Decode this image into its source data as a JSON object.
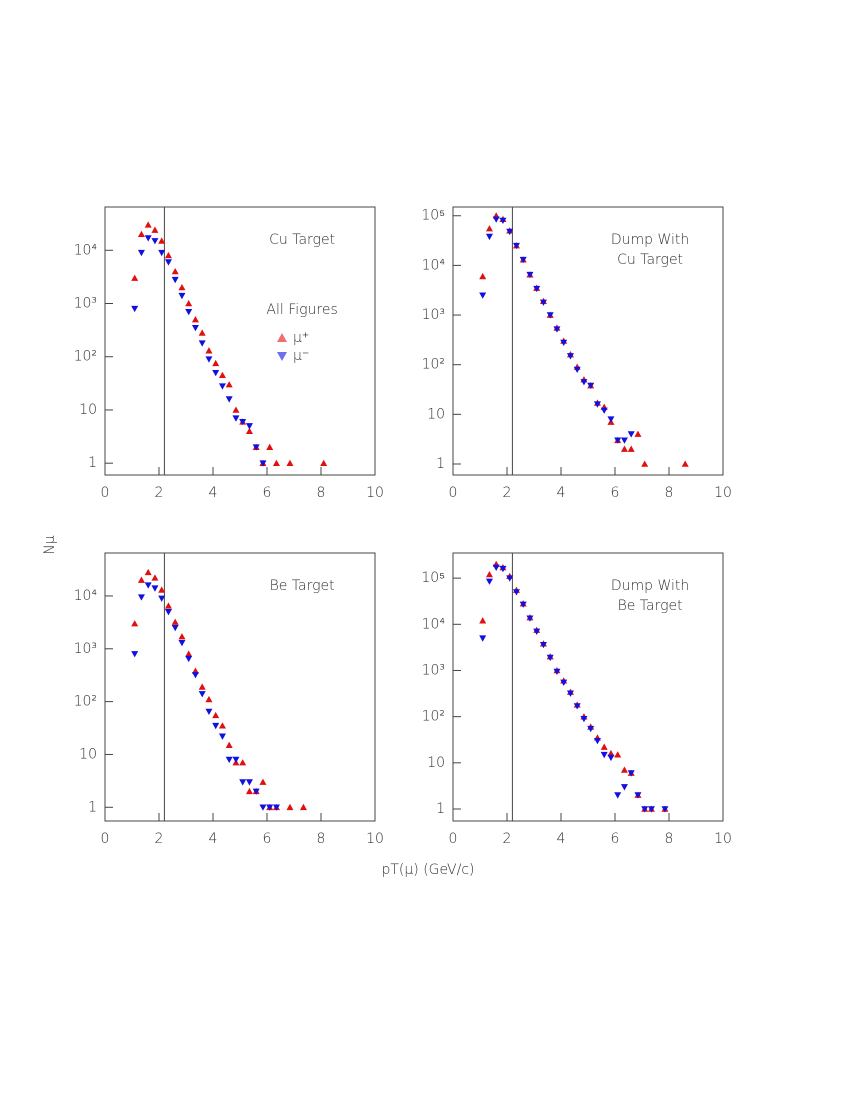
{
  "x_label": "pT(μ) (GeV/c)",
  "y_label": "Nμ",
  "chart_data": [
    {
      "type": "scatter",
      "label_lines": [
        "Cu Target"
      ],
      "legend": true,
      "legend_title": "All Figures",
      "log_y": true,
      "cut_x": 2.2,
      "xlim": [
        0,
        10
      ],
      "ylim": [
        0.6,
        65000
      ],
      "xticks": [
        0,
        2,
        4,
        6,
        8,
        10
      ],
      "yticks": [
        1,
        10,
        {
          "value": 100,
          "label": "10²"
        },
        {
          "value": 1000,
          "label": "10³"
        },
        {
          "value": 10000,
          "label": "10⁴"
        }
      ],
      "x": [
        1.1,
        1.35,
        1.6,
        1.85,
        2.1,
        2.35,
        2.6,
        2.85,
        3.1,
        3.35,
        3.6,
        3.85,
        4.1,
        4.35,
        4.6,
        4.85,
        5.1,
        5.35,
        5.6,
        5.85,
        6.1,
        6.35,
        6.6,
        6.85,
        7.1,
        7.35,
        7.6,
        7.85,
        8.1
      ],
      "series": [
        {
          "name": "μ⁺",
          "color": "#e01010",
          "marker": "up",
          "values": [
            3000,
            20000,
            30000,
            24000,
            15000,
            8000,
            4000,
            2000,
            1000,
            500,
            280,
            130,
            75,
            45,
            30,
            10,
            6,
            4,
            2,
            1,
            2,
            1,
            null,
            1,
            null,
            null,
            null,
            null,
            1
          ]
        },
        {
          "name": "μ⁻",
          "color": "#1010e0",
          "marker": "down",
          "values": [
            800,
            9000,
            17000,
            15000,
            9000,
            6000,
            2800,
            1400,
            700,
            350,
            180,
            90,
            50,
            28,
            16,
            7,
            6,
            5,
            2,
            1,
            null,
            null,
            null,
            null,
            null,
            null,
            null,
            null,
            null
          ]
        }
      ]
    },
    {
      "type": "scatter",
      "label_lines": [
        "Dump With",
        "Cu Target"
      ],
      "legend": false,
      "log_y": true,
      "cut_x": 2.2,
      "xlim": [
        0,
        10
      ],
      "ylim": [
        0.6,
        150000
      ],
      "xticks": [
        0,
        2,
        4,
        6,
        8,
        10
      ],
      "yticks": [
        1,
        10,
        {
          "value": 100,
          "label": "10²"
        },
        {
          "value": 1000,
          "label": "10³"
        },
        {
          "value": 10000,
          "label": "10⁴"
        },
        {
          "value": 100000,
          "label": "10⁵"
        }
      ],
      "x": [
        1.1,
        1.35,
        1.6,
        1.85,
        2.1,
        2.35,
        2.6,
        2.85,
        3.1,
        3.35,
        3.6,
        3.85,
        4.1,
        4.35,
        4.6,
        4.85,
        5.1,
        5.35,
        5.6,
        5.85,
        6.1,
        6.35,
        6.6,
        6.85,
        7.1,
        7.35,
        7.6,
        7.85,
        8.1,
        8.35,
        8.6
      ],
      "series": [
        {
          "color": "#e01010",
          "marker": "up",
          "values": [
            6000,
            55000,
            100000,
            85000,
            50000,
            25000,
            13000,
            6500,
            3500,
            1900,
            1000,
            550,
            300,
            160,
            90,
            50,
            38,
            17,
            14,
            7,
            3,
            2,
            2,
            4,
            1,
            null,
            null,
            null,
            null,
            null,
            1
          ]
        },
        {
          "color": "#1010e0",
          "marker": "down",
          "values": [
            2500,
            38000,
            85000,
            80000,
            48000,
            25000,
            13000,
            6500,
            3400,
            1800,
            1000,
            520,
            280,
            150,
            80,
            45,
            38,
            16,
            12,
            8,
            3,
            3,
            4,
            null,
            null,
            null,
            null,
            null,
            null,
            null,
            null
          ]
        }
      ]
    },
    {
      "type": "scatter",
      "label_lines": [
        "Be Target"
      ],
      "legend": false,
      "log_y": true,
      "cut_x": 2.2,
      "xlim": [
        0,
        10
      ],
      "ylim": [
        0.55,
        65000
      ],
      "xticks": [
        0,
        2,
        4,
        6,
        8,
        10
      ],
      "yticks": [
        1,
        10,
        {
          "value": 100,
          "label": "10²"
        },
        {
          "value": 1000,
          "label": "10³"
        },
        {
          "value": 10000,
          "label": "10⁴"
        }
      ],
      "x": [
        1.1,
        1.35,
        1.6,
        1.85,
        2.1,
        2.35,
        2.6,
        2.85,
        3.1,
        3.35,
        3.6,
        3.85,
        4.1,
        4.35,
        4.6,
        4.85,
        5.1,
        5.35,
        5.6,
        5.85,
        6.1,
        6.35,
        6.6,
        6.85,
        7.1,
        7.35
      ],
      "series": [
        {
          "color": "#e01010",
          "marker": "up",
          "values": [
            3000,
            20000,
            28000,
            22000,
            13000,
            6500,
            3200,
            1700,
            800,
            380,
            190,
            110,
            55,
            35,
            15,
            7,
            7,
            2,
            2,
            3,
            1,
            1,
            null,
            1,
            null,
            1
          ]
        },
        {
          "color": "#1010e0",
          "marker": "down",
          "values": [
            800,
            9500,
            16000,
            14000,
            9000,
            5000,
            2500,
            1300,
            650,
            320,
            140,
            65,
            35,
            22,
            8,
            8,
            3,
            3,
            2,
            1,
            1,
            1,
            null,
            null,
            null,
            null
          ]
        }
      ]
    },
    {
      "type": "scatter",
      "label_lines": [
        "Dump With",
        "Be Target"
      ],
      "legend": false,
      "log_y": true,
      "cut_x": 2.2,
      "xlim": [
        0,
        10
      ],
      "ylim": [
        0.55,
        350000
      ],
      "xticks": [
        0,
        2,
        4,
        6,
        8,
        10
      ],
      "yticks": [
        1,
        10,
        {
          "value": 100,
          "label": "10²"
        },
        {
          "value": 1000,
          "label": "10³"
        },
        {
          "value": 10000,
          "label": "10⁴"
        },
        {
          "value": 100000,
          "label": "10⁵"
        }
      ],
      "x": [
        1.1,
        1.35,
        1.6,
        1.85,
        2.1,
        2.35,
        2.6,
        2.85,
        3.1,
        3.35,
        3.6,
        3.85,
        4.1,
        4.35,
        4.6,
        4.85,
        5.1,
        5.35,
        5.6,
        5.85,
        6.1,
        6.35,
        6.6,
        6.85,
        7.1,
        7.35,
        7.6,
        7.85
      ],
      "series": [
        {
          "color": "#e01010",
          "marker": "up",
          "values": [
            12000,
            120000,
            200000,
            170000,
            110000,
            55000,
            28000,
            14000,
            7500,
            3800,
            2000,
            1000,
            600,
            340,
            180,
            100,
            60,
            35,
            22,
            16,
            15,
            7,
            6,
            2,
            1,
            1,
            null,
            1
          ]
        },
        {
          "color": "#1010e0",
          "marker": "down",
          "values": [
            5000,
            85000,
            170000,
            160000,
            100000,
            50000,
            27000,
            13500,
            7000,
            3600,
            1900,
            950,
            550,
            320,
            170,
            90,
            55,
            30,
            15,
            13,
            2,
            3,
            6,
            2,
            1,
            1,
            null,
            1
          ]
        }
      ]
    }
  ]
}
